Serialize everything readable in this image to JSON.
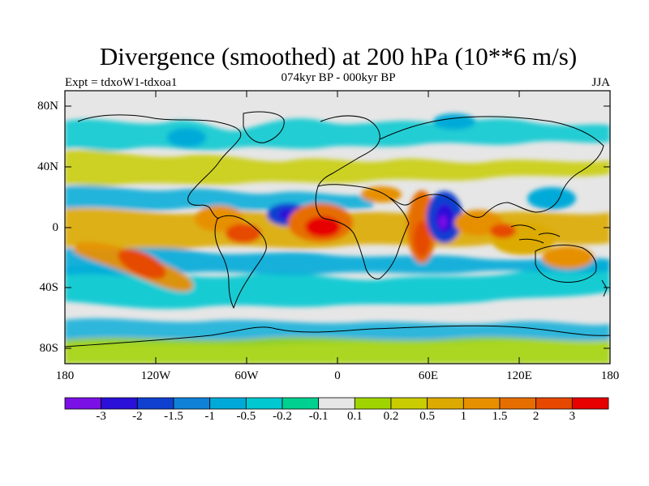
{
  "title": "Divergence (smoothed) at 200 hPa (10**6 m/s)",
  "subtitle": "074kyr BP - 000kyr BP",
  "experiment": "Expt = tdxoW1-tdxoa1",
  "season": "JJA",
  "lat_labels": [
    "80N",
    "40N",
    "0",
    "40S",
    "80S"
  ],
  "lon_labels": [
    "180",
    "120W",
    "60W",
    "0",
    "60E",
    "120E",
    "180"
  ],
  "colorbar": {
    "labels": [
      "-3",
      "-2",
      "-1.5",
      "-1",
      "-0.5",
      "-0.2",
      "-0.1",
      "0.1",
      "0.2",
      "0.5",
      "1",
      "1.5",
      "2",
      "3"
    ],
    "colors": [
      "#7a10e6",
      "#2a10d8",
      "#1040d0",
      "#0f82d8",
      "#00aad8",
      "#00c8d0",
      "#00d090",
      "#e6e6e6",
      "#a0d400",
      "#c8cc00",
      "#dcaa00",
      "#e69000",
      "#e66e00",
      "#e64800",
      "#e60000"
    ]
  },
  "map_colors": {
    "background": "#e6e6e6",
    "land_outline": "#000000"
  },
  "chart_data": {
    "type": "heatmap",
    "title": "Divergence (smoothed) at 200 hPa (10**6 m/s)",
    "projection": "cylindrical equidistant",
    "lon_range": [
      -180,
      180
    ],
    "lat_range": [
      -90,
      90
    ],
    "contour_levels": [
      -3,
      -2,
      -1.5,
      -1,
      -0.5,
      -0.2,
      -0.1,
      0.1,
      0.2,
      0.5,
      1,
      1.5,
      2,
      3
    ],
    "features": [
      {
        "name": "central Atlantic positive max",
        "lon": -5,
        "lat": 5,
        "value": 3
      },
      {
        "name": "east Indian Ocean negative min",
        "lon": 70,
        "lat": 3,
        "value": -3
      },
      {
        "name": "Arabian Sea positive",
        "lon": 55,
        "lat": 0,
        "value": 2
      },
      {
        "name": "tropical Atlantic negative",
        "lon": -35,
        "lat": 10,
        "value": -1.5
      },
      {
        "name": "south Pacific positive band",
        "lon": -130,
        "lat": -25,
        "value": 2
      },
      {
        "name": "northern South America positive",
        "lon": -70,
        "lat": 5,
        "value": 1.5
      },
      {
        "name": "maritime continent positive",
        "lon": 115,
        "lat": 0,
        "value": 1.5
      },
      {
        "name": "southern midlatitude negative band",
        "lon": 0,
        "lat": -45,
        "value": -0.5
      }
    ]
  }
}
